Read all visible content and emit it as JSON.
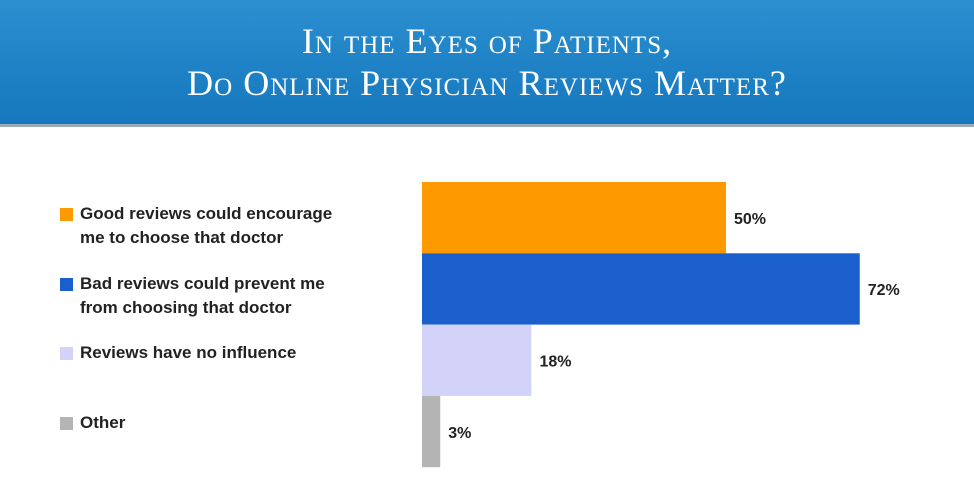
{
  "chart_data": {
    "type": "bar",
    "title": [
      "In the Eyes of Patients,",
      "Do Online Physician Reviews Matter?"
    ],
    "categories": [
      "Good reviews could encourage me to choose that doctor",
      "Bad reviews could prevent me from choosing that doctor",
      "Reviews have no influence",
      "Other"
    ],
    "values": [
      50,
      72,
      18,
      3
    ],
    "value_labels": [
      "50%",
      "72%",
      "18%",
      "3%"
    ],
    "colors": [
      "#ff9900",
      "#1a5fcc",
      "#d3d3fa",
      "#b4b4b4"
    ]
  }
}
